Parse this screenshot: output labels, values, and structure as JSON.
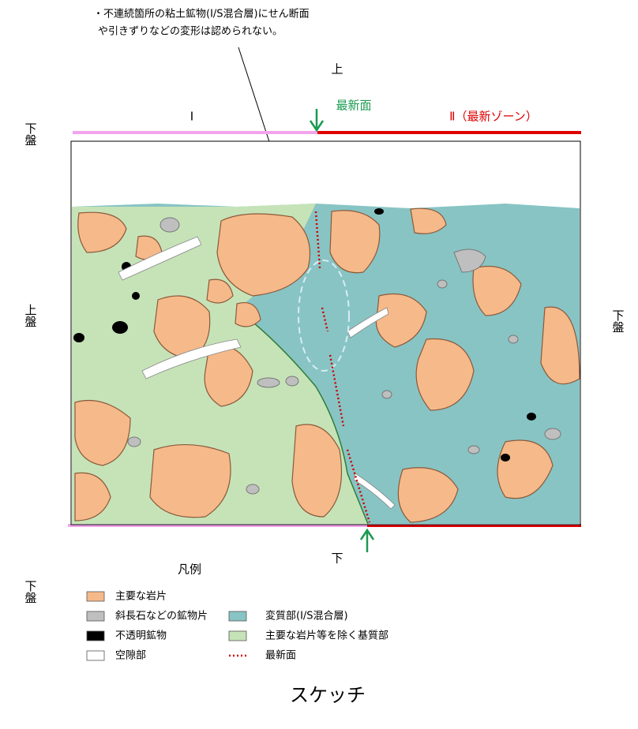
{
  "annotation": {
    "lines": [
      "・不連続箇所の粘土鉱物(I/S混合層)にせん断面",
      "や引きずりなどの変形は認められない。"
    ]
  },
  "labels": {
    "top": "上",
    "bottom": "下",
    "newest_plane": "最新面",
    "zone_1": "I",
    "zone_2": "Ⅱ（最新ゾーン）"
  },
  "side_labels": {
    "left_top": "下盤",
    "left_middle": "上盤",
    "left_bottom": "下盤",
    "right": "下盤"
  },
  "legend": {
    "title": "凡例",
    "items": [
      {
        "label": "主要な岩片"
      },
      {
        "label": "斜長石などの鉱物片"
      },
      {
        "label": "不透明鉱物"
      },
      {
        "label": "空隙部"
      },
      {
        "label": "変質部(I/S混合層)"
      },
      {
        "label": "主要な岩片等を除く基質部"
      },
      {
        "label": "最新面"
      }
    ]
  },
  "caption": "スケッチ"
}
